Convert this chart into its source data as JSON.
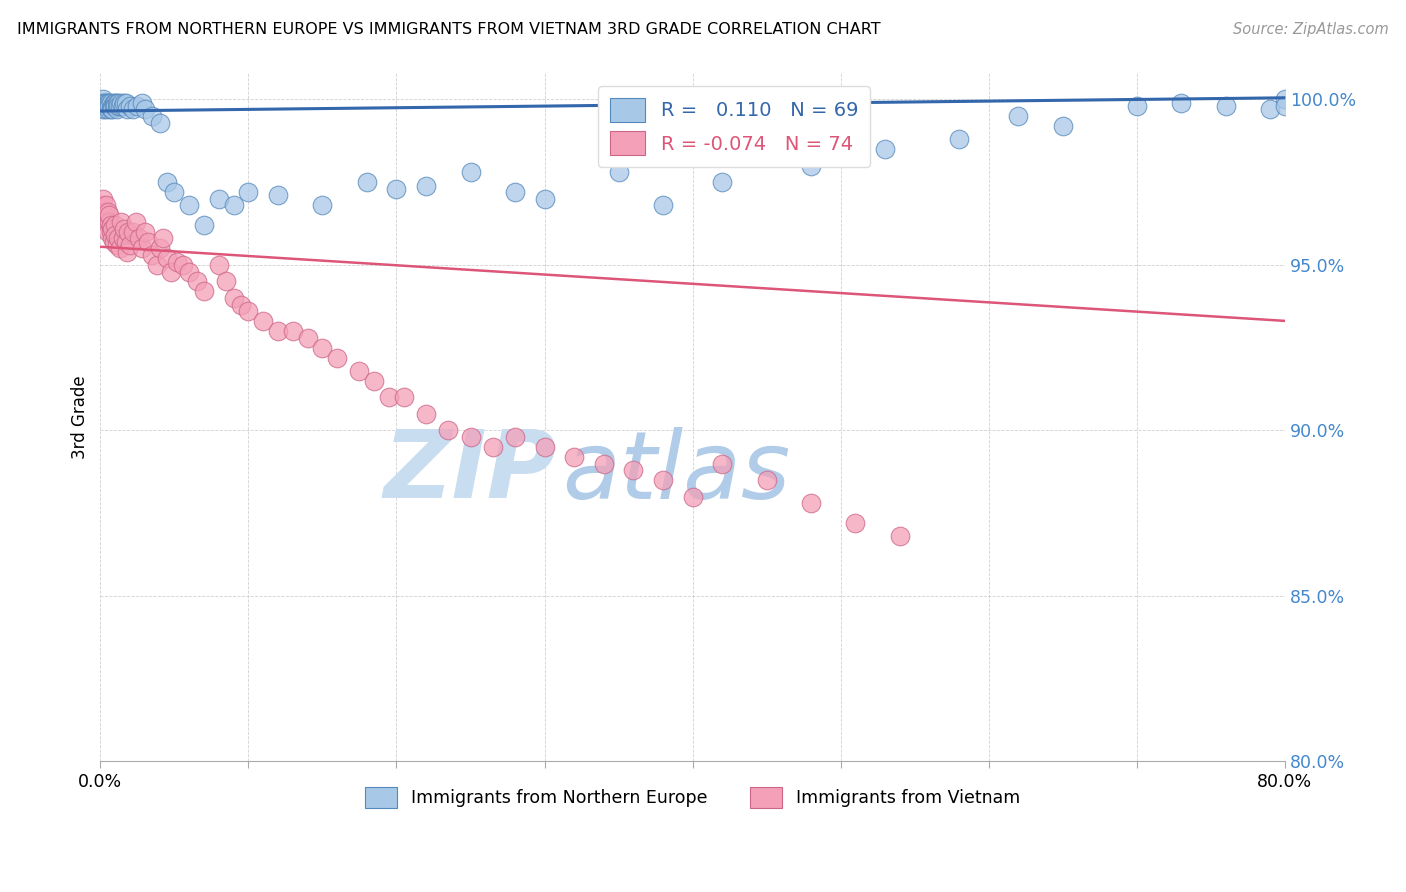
{
  "title": "IMMIGRANTS FROM NORTHERN EUROPE VS IMMIGRANTS FROM VIETNAM 3RD GRADE CORRELATION CHART",
  "source": "Source: ZipAtlas.com",
  "ylabel": "3rd Grade",
  "x_min": 0.0,
  "x_max": 0.8,
  "y_min": 0.8,
  "y_max": 1.008,
  "y_ticks": [
    0.8,
    0.85,
    0.9,
    0.95,
    1.0
  ],
  "y_tick_labels": [
    "80.0%",
    "85.0%",
    "90.0%",
    "95.0%",
    "100.0%"
  ],
  "blue_color": "#a8c8e8",
  "pink_color": "#f4a0b8",
  "blue_edge_color": "#5588bb",
  "pink_edge_color": "#cc6688",
  "blue_line_color": "#3366aa",
  "pink_line_color": "#dd5577",
  "blue_R": 0.11,
  "blue_N": 69,
  "pink_R": -0.074,
  "pink_N": 74,
  "blue_intercept": 0.9965,
  "blue_slope": 0.005,
  "pink_intercept": 0.9555,
  "pink_slope": -0.028,
  "blue_x": [
    0.001,
    0.001,
    0.002,
    0.002,
    0.002,
    0.003,
    0.003,
    0.003,
    0.004,
    0.004,
    0.005,
    0.005,
    0.005,
    0.006,
    0.006,
    0.007,
    0.007,
    0.008,
    0.008,
    0.009,
    0.009,
    0.01,
    0.01,
    0.011,
    0.011,
    0.012,
    0.012,
    0.013,
    0.014,
    0.015,
    0.016,
    0.017,
    0.018,
    0.02,
    0.022,
    0.025,
    0.028,
    0.03,
    0.035,
    0.04,
    0.045,
    0.05,
    0.06,
    0.07,
    0.08,
    0.09,
    0.1,
    0.12,
    0.15,
    0.18,
    0.2,
    0.22,
    0.25,
    0.28,
    0.3,
    0.35,
    0.38,
    0.42,
    0.48,
    0.53,
    0.58,
    0.62,
    0.65,
    0.7,
    0.73,
    0.76,
    0.79,
    0.8,
    0.8
  ],
  "blue_y": [
    0.999,
    0.998,
    1.0,
    0.999,
    0.997,
    0.999,
    0.998,
    0.997,
    0.999,
    0.998,
    0.999,
    0.998,
    0.997,
    0.999,
    0.998,
    0.999,
    0.997,
    0.998,
    0.997,
    0.999,
    0.998,
    0.999,
    0.998,
    0.999,
    0.997,
    0.999,
    0.998,
    0.998,
    0.999,
    0.998,
    0.999,
    0.999,
    0.997,
    0.998,
    0.997,
    0.998,
    0.999,
    0.997,
    0.995,
    0.993,
    0.975,
    0.972,
    0.968,
    0.962,
    0.97,
    0.968,
    0.972,
    0.971,
    0.968,
    0.975,
    0.973,
    0.974,
    0.978,
    0.972,
    0.97,
    0.978,
    0.968,
    0.975,
    0.98,
    0.985,
    0.988,
    0.995,
    0.992,
    0.998,
    0.999,
    0.998,
    0.997,
    1.0,
    0.998
  ],
  "pink_x": [
    0.001,
    0.002,
    0.003,
    0.004,
    0.004,
    0.005,
    0.005,
    0.006,
    0.006,
    0.007,
    0.007,
    0.008,
    0.008,
    0.009,
    0.01,
    0.01,
    0.011,
    0.012,
    0.013,
    0.014,
    0.015,
    0.016,
    0.017,
    0.018,
    0.019,
    0.02,
    0.022,
    0.024,
    0.026,
    0.028,
    0.03,
    0.032,
    0.035,
    0.038,
    0.04,
    0.042,
    0.045,
    0.048,
    0.052,
    0.056,
    0.06,
    0.065,
    0.07,
    0.08,
    0.085,
    0.09,
    0.095,
    0.1,
    0.11,
    0.12,
    0.13,
    0.14,
    0.15,
    0.16,
    0.175,
    0.185,
    0.195,
    0.205,
    0.22,
    0.235,
    0.25,
    0.265,
    0.28,
    0.3,
    0.32,
    0.34,
    0.36,
    0.38,
    0.4,
    0.42,
    0.45,
    0.48,
    0.51,
    0.54
  ],
  "pink_y": [
    0.968,
    0.97,
    0.966,
    0.963,
    0.968,
    0.96,
    0.966,
    0.963,
    0.965,
    0.96,
    0.962,
    0.958,
    0.961,
    0.957,
    0.962,
    0.959,
    0.956,
    0.958,
    0.955,
    0.963,
    0.958,
    0.961,
    0.957,
    0.954,
    0.96,
    0.956,
    0.96,
    0.963,
    0.958,
    0.955,
    0.96,
    0.957,
    0.953,
    0.95,
    0.955,
    0.958,
    0.952,
    0.948,
    0.951,
    0.95,
    0.948,
    0.945,
    0.942,
    0.95,
    0.945,
    0.94,
    0.938,
    0.936,
    0.933,
    0.93,
    0.93,
    0.928,
    0.925,
    0.922,
    0.918,
    0.915,
    0.91,
    0.91,
    0.905,
    0.9,
    0.898,
    0.895,
    0.898,
    0.895,
    0.892,
    0.89,
    0.888,
    0.885,
    0.88,
    0.89,
    0.885,
    0.878,
    0.872,
    0.868
  ],
  "watermark_zip_color": "#c8ddf0",
  "watermark_atlas_color": "#b0cce8",
  "background_color": "#ffffff",
  "legend_label_blue": "Immigrants from Northern Europe",
  "legend_label_pink": "Immigrants from Vietnam"
}
